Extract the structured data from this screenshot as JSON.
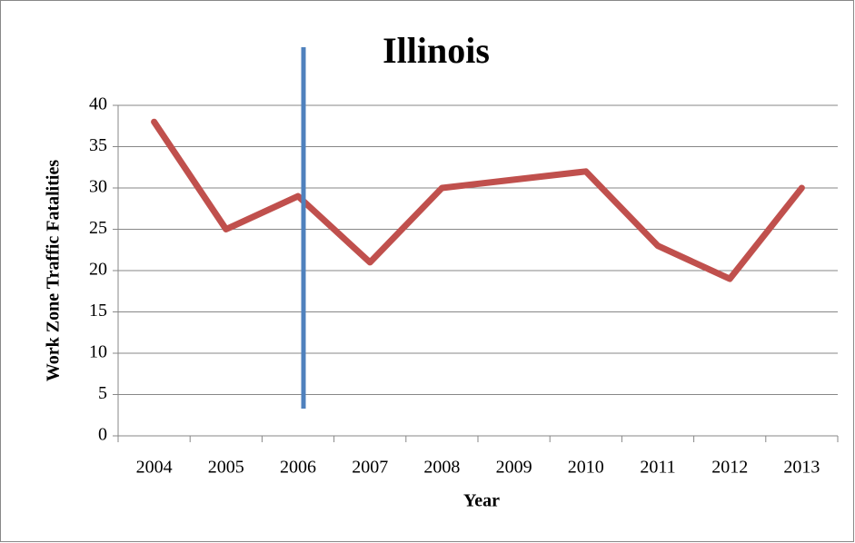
{
  "chart_data": {
    "type": "line",
    "title": "Illinois",
    "x_label": "Year",
    "y_label": "Work Zone Traffic Fatalities",
    "categories": [
      "2004",
      "2005",
      "2006",
      "2007",
      "2008",
      "2009",
      "2010",
      "2011",
      "2012",
      "2013"
    ],
    "series": [
      {
        "name": "Illinois",
        "color": "#c0504d",
        "values": [
          38,
          25,
          29,
          21,
          30,
          31,
          32,
          23,
          19,
          30
        ]
      }
    ],
    "ylim": [
      0,
      40
    ],
    "yticks": [
      0,
      5,
      10,
      15,
      20,
      25,
      30,
      35,
      40
    ],
    "grid": true
  }
}
